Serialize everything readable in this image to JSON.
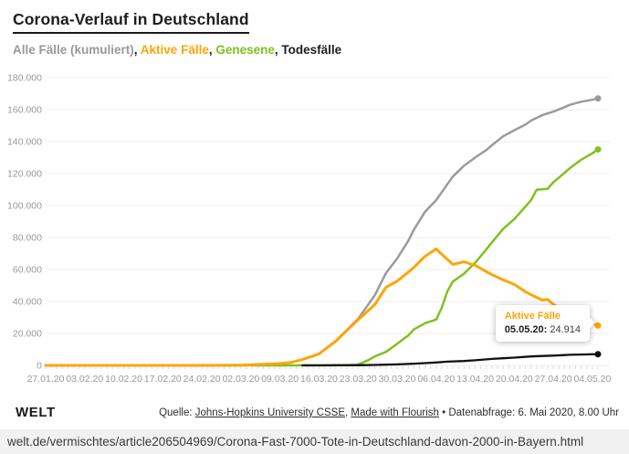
{
  "header": {
    "title": "Corona-Verlauf in Deutschland"
  },
  "legend": {
    "separator": ", ",
    "items": [
      {
        "label": "Alle Fälle (kumuliert)",
        "color": "#999999"
      },
      {
        "label": "Aktive Fälle",
        "color": "#ffa408"
      },
      {
        "label": "Genesene",
        "color": "#7dc21e"
      },
      {
        "label": "Todesfälle",
        "color": "#1d1d1d"
      }
    ]
  },
  "tooltip": {
    "title": "Aktive Fälle",
    "date_label": "05.05.20:",
    "value": "24.914"
  },
  "footer": {
    "logo": "WELT",
    "source_prefix": "Quelle: ",
    "source_link1": "Johns-Hopkins University CSSE",
    "source_sep": ", ",
    "source_link2": "Made with Flourish",
    "source_suffix": " • Datenabfrage: 6. Mai 2020, 8.00 Uhr"
  },
  "url_bar": {
    "url": "welt.de/vermischtes/article206504969/Corona-Fast-7000-Tote-in-Deutschland-davon-2000-in-Bayern.html"
  },
  "chart_data": {
    "type": "line",
    "title": "Corona-Verlauf in Deutschland",
    "xlabel": "",
    "ylabel": "",
    "grid": "horizontal",
    "gridline_color": "#ececec",
    "axis_label_color": "#999999",
    "x_axis": {
      "start": "27.01.20",
      "end": "05.05.20",
      "tick_labels": [
        "27.01.20",
        "03.02.20",
        "10.02.20",
        "17.02.20",
        "24.02.20",
        "02.03.20",
        "09.03.20",
        "16.03.20",
        "23.03.20",
        "30.03.20",
        "06.04.20",
        "13.04.20",
        "20.04.20",
        "27.04.20",
        "04.05.20"
      ]
    },
    "y_axis": {
      "min": 0,
      "max": 180000,
      "tick_labels": [
        "0",
        "20.000",
        "40.000",
        "60.000",
        "80.000",
        "100.000",
        "120.000",
        "140.000",
        "160.000",
        "180.000"
      ]
    },
    "series": [
      {
        "id": "alle-faelle-kumuliert",
        "name": "Alle Fälle (kumuliert)",
        "color": "#9b9b9b",
        "end_value": 167007,
        "points": [
          [
            "27.01.20",
            1
          ],
          [
            "03.02.20",
            12
          ],
          [
            "10.02.20",
            14
          ],
          [
            "17.02.20",
            16
          ],
          [
            "24.02.20",
            16
          ],
          [
            "28.02.20",
            48
          ],
          [
            "02.03.20",
            159
          ],
          [
            "06.03.20",
            670
          ],
          [
            "09.03.20",
            1176
          ],
          [
            "11.03.20",
            1908
          ],
          [
            "13.03.20",
            3675
          ],
          [
            "16.03.20",
            7272
          ],
          [
            "19.03.20",
            15320
          ],
          [
            "21.03.20",
            22213
          ],
          [
            "23.03.20",
            29056
          ],
          [
            "26.03.20",
            43938
          ],
          [
            "28.03.20",
            57695
          ],
          [
            "30.03.20",
            66885
          ],
          [
            "01.04.20",
            77872
          ],
          [
            "02.04.20",
            84794
          ],
          [
            "04.04.20",
            96092
          ],
          [
            "06.04.20",
            103374
          ],
          [
            "08.04.20",
            113296
          ],
          [
            "09.04.20",
            118181
          ],
          [
            "11.04.20",
            124908
          ],
          [
            "13.04.20",
            130072
          ],
          [
            "15.04.20",
            134753
          ],
          [
            "16.04.20",
            137698
          ],
          [
            "18.04.20",
            143342
          ],
          [
            "20.04.20",
            147065
          ],
          [
            "22.04.20",
            150648
          ],
          [
            "23.04.20",
            153129
          ],
          [
            "25.04.20",
            156513
          ],
          [
            "27.04.20",
            158758
          ],
          [
            "29.04.20",
            161539
          ],
          [
            "30.04.20",
            163009
          ],
          [
            "02.05.20",
            164967
          ],
          [
            "04.05.20",
            166152
          ],
          [
            "05.05.20",
            167007
          ]
        ]
      },
      {
        "id": "aktive-faelle",
        "name": "Aktive Fälle",
        "color": "#ffa408",
        "end_value": 24914,
        "points": [
          [
            "27.01.20",
            1
          ],
          [
            "03.02.20",
            12
          ],
          [
            "10.02.20",
            12
          ],
          [
            "17.02.20",
            4
          ],
          [
            "24.02.20",
            2
          ],
          [
            "28.02.20",
            32
          ],
          [
            "02.03.20",
            143
          ],
          [
            "06.03.20",
            652
          ],
          [
            "09.03.20",
            1158
          ],
          [
            "11.03.20",
            1879
          ],
          [
            "13.03.20",
            3621
          ],
          [
            "16.03.20",
            7188
          ],
          [
            "19.03.20",
            15163
          ],
          [
            "21.03.20",
            21896
          ],
          [
            "23.03.20",
            28480
          ],
          [
            "26.03.20",
            38067
          ],
          [
            "28.03.20",
            48781
          ],
          [
            "30.03.20",
            52740
          ],
          [
            "01.04.20",
            58280
          ],
          [
            "02.04.20",
            61247
          ],
          [
            "04.04.20",
            68236
          ],
          [
            "06.04.20",
            72865
          ],
          [
            "07.04.20",
            69566
          ],
          [
            "09.04.20",
            63167
          ],
          [
            "11.04.20",
            64772
          ],
          [
            "13.04.20",
            62578
          ],
          [
            "15.04.20",
            58668
          ],
          [
            "16.04.20",
            56720
          ],
          [
            "18.04.20",
            53471
          ],
          [
            "20.04.20",
            50703
          ],
          [
            "22.04.20",
            46079
          ],
          [
            "23.04.20",
            44254
          ],
          [
            "25.04.20",
            40836
          ],
          [
            "26.04.20",
            41294
          ],
          [
            "27.04.20",
            38132
          ],
          [
            "29.04.20",
            34672
          ],
          [
            "30.04.20",
            33097
          ],
          [
            "02.05.20",
            29455
          ],
          [
            "04.05.20",
            26459
          ],
          [
            "05.05.20",
            24914
          ]
        ]
      },
      {
        "id": "genesene",
        "name": "Genesene",
        "color": "#7dc21e",
        "end_value": 135100,
        "points": [
          [
            "27.01.20",
            0
          ],
          [
            "03.02.20",
            0
          ],
          [
            "10.02.20",
            2
          ],
          [
            "17.02.20",
            12
          ],
          [
            "24.02.20",
            14
          ],
          [
            "02.03.20",
            16
          ],
          [
            "09.03.20",
            18
          ],
          [
            "13.03.20",
            46
          ],
          [
            "16.03.20",
            67
          ],
          [
            "19.03.20",
            113
          ],
          [
            "21.03.20",
            233
          ],
          [
            "23.03.20",
            453
          ],
          [
            "25.03.20",
            3547
          ],
          [
            "26.03.20",
            5673
          ],
          [
            "28.03.20",
            8481
          ],
          [
            "30.03.20",
            13500
          ],
          [
            "01.04.20",
            18700
          ],
          [
            "02.04.20",
            22440
          ],
          [
            "04.04.20",
            26400
          ],
          [
            "06.04.20",
            28700
          ],
          [
            "07.04.20",
            36081
          ],
          [
            "08.04.20",
            46300
          ],
          [
            "09.04.20",
            52407
          ],
          [
            "11.04.20",
            57400
          ],
          [
            "13.04.20",
            64300
          ],
          [
            "15.04.20",
            72600
          ],
          [
            "16.04.20",
            77000
          ],
          [
            "18.04.20",
            85400
          ],
          [
            "20.04.20",
            91500
          ],
          [
            "22.04.20",
            99400
          ],
          [
            "23.04.20",
            103300
          ],
          [
            "24.04.20",
            109800
          ],
          [
            "26.04.20",
            110500
          ],
          [
            "27.04.20",
            114500
          ],
          [
            "29.04.20",
            120400
          ],
          [
            "30.04.20",
            123500
          ],
          [
            "02.05.20",
            128700
          ],
          [
            "04.05.20",
            132700
          ],
          [
            "05.05.20",
            135100
          ]
        ]
      },
      {
        "id": "todesfaelle",
        "name": "Todesfälle",
        "color": "#111111",
        "end_value": 6993,
        "points": [
          [
            "13.03.20",
            8
          ],
          [
            "16.03.20",
            17
          ],
          [
            "19.03.20",
            44
          ],
          [
            "23.03.20",
            123
          ],
          [
            "26.03.20",
            267
          ],
          [
            "28.03.20",
            433
          ],
          [
            "30.03.20",
            645
          ],
          [
            "02.04.20",
            1107
          ],
          [
            "04.04.20",
            1444
          ],
          [
            "06.04.20",
            1810
          ],
          [
            "08.04.20",
            2349
          ],
          [
            "11.04.20",
            2736
          ],
          [
            "13.04.20",
            3194
          ],
          [
            "16.04.20",
            4052
          ],
          [
            "18.04.20",
            4459
          ],
          [
            "20.04.20",
            4862
          ],
          [
            "23.04.20",
            5575
          ],
          [
            "25.04.20",
            5877
          ],
          [
            "27.04.20",
            6126
          ],
          [
            "29.04.20",
            6467
          ],
          [
            "30.04.20",
            6623
          ],
          [
            "02.05.20",
            6812
          ],
          [
            "04.05.20",
            6993
          ],
          [
            "05.05.20",
            6993
          ]
        ]
      }
    ]
  }
}
